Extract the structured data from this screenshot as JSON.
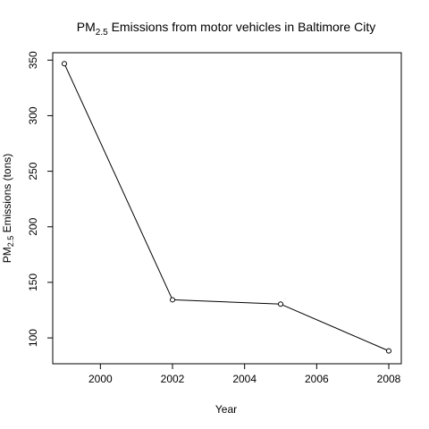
{
  "chart_data": {
    "type": "line",
    "title": {
      "prefix": "PM",
      "sub": "2.5",
      "rest": " Emissions from motor vehicles in Baltimore City"
    },
    "xlabel": "Year",
    "ylabel": {
      "prefix": "PM",
      "sub": "2.5",
      "rest": " Emissions (tons)"
    },
    "x": [
      1999,
      2002,
      2005,
      2008
    ],
    "series": [
      {
        "values": [
          346.8,
          134.3,
          130.4,
          88.3
        ]
      }
    ],
    "xlim": [
      1999,
      2008
    ],
    "ylim": [
      88,
      347
    ],
    "xticks": [
      2000,
      2002,
      2004,
      2006,
      2008
    ],
    "yticks": [
      100,
      150,
      200,
      250,
      300,
      350
    ],
    "grid": false,
    "marker": "open-circle",
    "colors": {
      "line": "#000000",
      "axis": "#000000"
    }
  }
}
